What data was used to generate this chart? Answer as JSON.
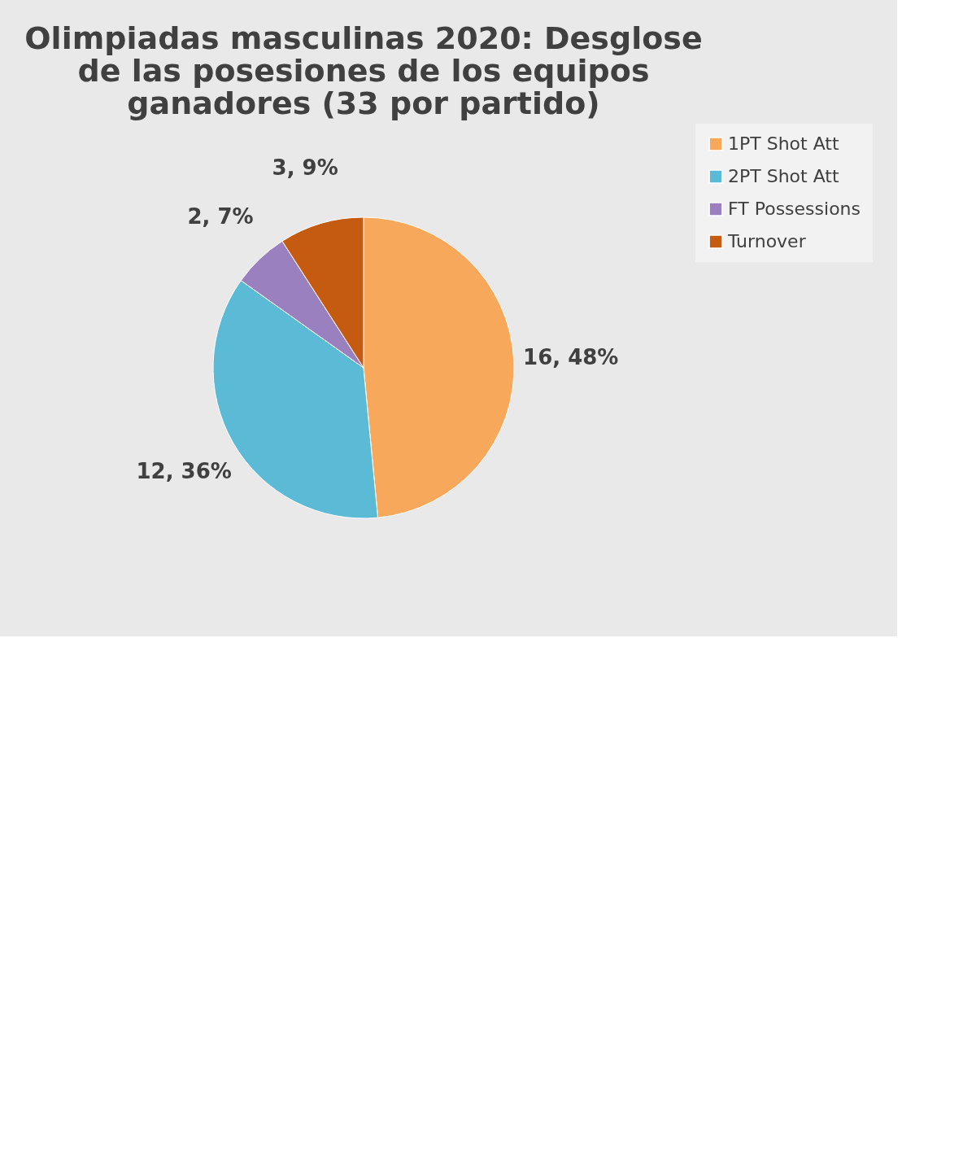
{
  "chart_data": {
    "type": "pie",
    "title": [
      "Olimpiadas masculinas 2020: Desglose",
      "de las posesiones de los equipos",
      "ganadores (33 por partido)"
    ],
    "categories": [
      "1PT Shot Att",
      "2PT Shot Att",
      "FT Possessions",
      "Turnover"
    ],
    "values": [
      16,
      12,
      2,
      3
    ],
    "colors": [
      "#f8a85a",
      "#5bbad5",
      "#9b80c0",
      "#c55a11"
    ],
    "value_labels": [
      "16, 48%",
      "12, 36%",
      "2, 7%",
      "3, 9%"
    ],
    "legend": "right"
  }
}
